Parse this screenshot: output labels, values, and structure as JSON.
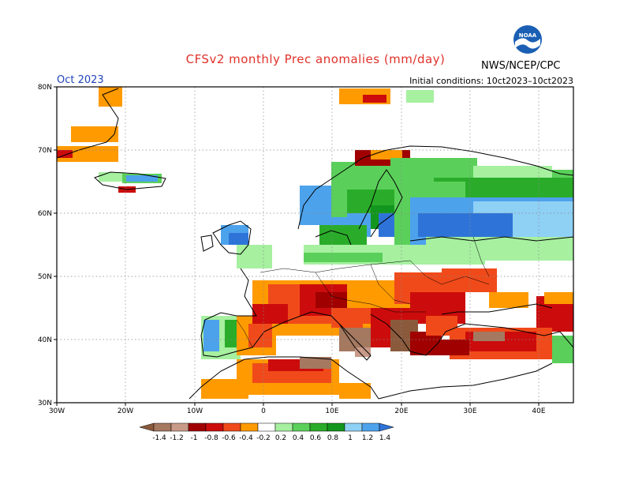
{
  "header": {
    "title": "CFSv2 monthly Prec anomalies (mm/day)",
    "agency": "NWS/NCEP/CPC",
    "logo_text": "NOAA",
    "month": "Oct 2023",
    "initial_conditions": "Initial conditions: 10ct2023–10ct2023"
  },
  "map": {
    "lat_labels": [
      "80N",
      "70N",
      "60N",
      "50N",
      "40N",
      "30N"
    ],
    "lon_labels": [
      "30W",
      "20W",
      "10W",
      "0",
      "10E",
      "20E",
      "30E",
      "40E"
    ]
  },
  "colorbar": {
    "labels": [
      "-1.4",
      "-1.2",
      "-1",
      "-0.8",
      "-0.6",
      "-0.4",
      "-0.2",
      "0.2",
      "0.4",
      "0.6",
      "0.8",
      "1",
      "1.2",
      "1.4"
    ],
    "colors": [
      "#8b5a3c",
      "#a57860",
      "#c89a88",
      "#a00000",
      "#cc0c0c",
      "#f04a1a",
      "#ff9a00",
      "#ffffff",
      "#a6f0a0",
      "#5ad05a",
      "#2aac2a",
      "#13961e",
      "#8fd0f5",
      "#4da2ec",
      "#2e74d8"
    ]
  }
}
